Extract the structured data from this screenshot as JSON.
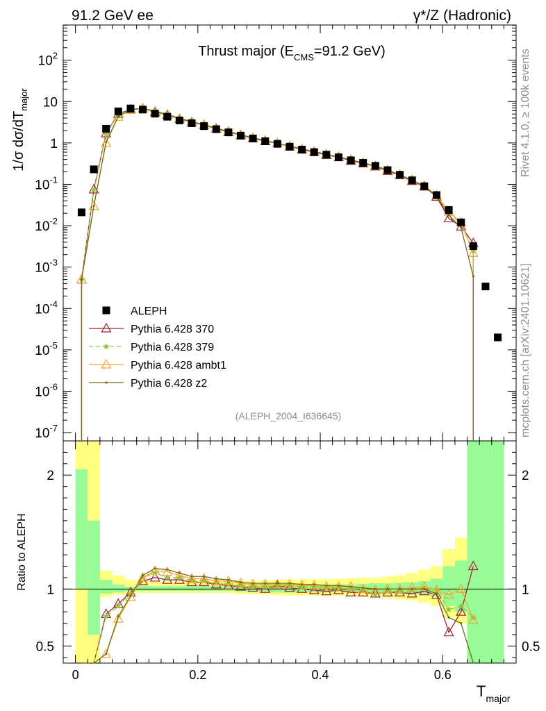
{
  "header": {
    "left": "91.2 GeV ee",
    "right": "γ*/Z (Hadronic)"
  },
  "side": {
    "rivet": "Rivet 4.1.0, ≥ 100k events",
    "site": "mcplots.cern.ch [arXiv:2401.10621]"
  },
  "watermark": "(ALEPH_2004_I636645)",
  "chart_data": {
    "type": "scatter",
    "title": "Thrust major (E_CMS=91.2 GeV)",
    "title_main": "Thrust major (E",
    "title_sub": "CMS",
    "title_tail": "=91.2 GeV)",
    "ylabel": "1/σ  dσ/dT",
    "ylabel_sub": "major",
    "xlabel": "T",
    "xlabel_sub": "major",
    "ratio_ylabel": "Ratio to ALEPH",
    "xlim": [
      -0.02,
      0.72
    ],
    "ylim_log10": [
      -7.2,
      2.85
    ],
    "ratio_ylim": [
      0.35,
      2.3
    ],
    "x_ticks": [
      "0",
      "0.2",
      "0.4",
      "0.6"
    ],
    "x_tick_values": [
      0,
      0.2,
      0.4,
      0.6
    ],
    "y_tick_labels": [
      "10^2",
      "10",
      "1",
      "10^-1",
      "10^-2",
      "10^-3",
      "10^-4",
      "10^-5",
      "10^-6",
      "10^-7"
    ],
    "y_tick_values": [
      100,
      10,
      1,
      0.1,
      0.01,
      0.001,
      0.0001,
      1e-05,
      1e-06,
      1e-07
    ],
    "ratio_ticks": [
      "0.5",
      "1",
      "2"
    ],
    "ratio_tick_values": [
      0.5,
      1,
      2
    ],
    "x": [
      0.01,
      0.03,
      0.05,
      0.07,
      0.09,
      0.11,
      0.13,
      0.15,
      0.17,
      0.19,
      0.21,
      0.23,
      0.25,
      0.27,
      0.29,
      0.31,
      0.33,
      0.35,
      0.37,
      0.39,
      0.41,
      0.43,
      0.45,
      0.47,
      0.49,
      0.51,
      0.53,
      0.55,
      0.57,
      0.59,
      0.61,
      0.63,
      0.65,
      0.67,
      0.69
    ],
    "band_inner": [
      [
        1.0,
        2.05
      ],
      [
        0.6,
        1.6
      ],
      [
        0.96,
        1.08
      ],
      [
        0.97,
        1.04
      ],
      [
        0.98,
        1.02
      ],
      [
        0.985,
        1.03
      ],
      [
        0.985,
        1.025
      ],
      [
        0.985,
        1.025
      ],
      [
        0.985,
        1.025
      ],
      [
        0.985,
        1.025
      ],
      [
        0.985,
        1.025
      ],
      [
        0.985,
        1.025
      ],
      [
        0.985,
        1.025
      ],
      [
        0.98,
        1.03
      ],
      [
        0.98,
        1.03
      ],
      [
        0.975,
        1.035
      ],
      [
        0.97,
        1.04
      ],
      [
        0.97,
        1.04
      ],
      [
        0.97,
        1.04
      ],
      [
        0.97,
        1.04
      ],
      [
        0.97,
        1.04
      ],
      [
        0.97,
        1.04
      ],
      [
        0.97,
        1.04
      ],
      [
        0.965,
        1.045
      ],
      [
        0.96,
        1.05
      ],
      [
        0.96,
        1.05
      ],
      [
        0.955,
        1.055
      ],
      [
        0.95,
        1.06
      ],
      [
        0.95,
        1.07
      ],
      [
        0.93,
        1.09
      ],
      [
        0.85,
        1.2
      ],
      [
        0.8,
        1.25
      ],
      [
        0.35,
        2.3
      ],
      [
        0.35,
        2.3
      ],
      [
        0.35,
        2.3
      ]
    ],
    "band_outer": [
      [
        0.35,
        2.3
      ],
      [
        0.35,
        2.3
      ],
      [
        0.93,
        1.16
      ],
      [
        0.95,
        1.12
      ],
      [
        0.96,
        1.08
      ],
      [
        0.965,
        1.07
      ],
      [
        0.965,
        1.065
      ],
      [
        0.965,
        1.065
      ],
      [
        0.965,
        1.065
      ],
      [
        0.965,
        1.065
      ],
      [
        0.965,
        1.065
      ],
      [
        0.965,
        1.065
      ],
      [
        0.965,
        1.065
      ],
      [
        0.955,
        1.07
      ],
      [
        0.955,
        1.07
      ],
      [
        0.95,
        1.075
      ],
      [
        0.945,
        1.08
      ],
      [
        0.94,
        1.085
      ],
      [
        0.94,
        1.085
      ],
      [
        0.94,
        1.085
      ],
      [
        0.94,
        1.085
      ],
      [
        0.94,
        1.09
      ],
      [
        0.935,
        1.095
      ],
      [
        0.93,
        1.1
      ],
      [
        0.93,
        1.1
      ],
      [
        0.92,
        1.11
      ],
      [
        0.91,
        1.12
      ],
      [
        0.9,
        1.14
      ],
      [
        0.88,
        1.17
      ],
      [
        0.85,
        1.2
      ],
      [
        0.75,
        1.35
      ],
      [
        0.7,
        1.45
      ],
      [
        0.35,
        2.3
      ],
      [
        0.35,
        2.3
      ],
      [
        0.35,
        2.3
      ]
    ],
    "series": [
      {
        "name": "ALEPH",
        "color": "#000000",
        "marker": "square",
        "values": [
          0.021,
          0.23,
          2.2,
          5.8,
          6.8,
          6.4,
          5.1,
          4.3,
          3.5,
          3.0,
          2.55,
          2.15,
          1.8,
          1.5,
          1.28,
          1.1,
          0.95,
          0.81,
          0.69,
          0.6,
          0.52,
          0.45,
          0.38,
          0.33,
          0.28,
          0.22,
          0.17,
          0.125,
          0.09,
          0.055,
          0.024,
          0.012,
          0.0032,
          0.00034,
          2e-05
        ]
      },
      {
        "name": "Pythia 6.428 370",
        "color": "#a0222e",
        "marker": "triangle-open",
        "dash": "",
        "values": [
          0.0005,
          0.075,
          1.7,
          5.0,
          6.5,
          6.8,
          5.5,
          4.7,
          3.8,
          3.15,
          2.7,
          2.2,
          1.83,
          1.52,
          1.29,
          1.1,
          0.98,
          0.82,
          0.69,
          0.6,
          0.51,
          0.45,
          0.37,
          0.32,
          0.27,
          0.21,
          0.165,
          0.12,
          0.088,
          0.05,
          0.015,
          0.0095,
          0.0038,
          null,
          null
        ],
        "ratio": [
          0.2,
          0.33,
          0.78,
          0.87,
          0.97,
          1.07,
          1.1,
          1.08,
          1.08,
          1.06,
          1.06,
          1.04,
          1.03,
          1.02,
          1.01,
          1.0,
          1.03,
          1.01,
          1.0,
          0.99,
          0.98,
          0.99,
          0.97,
          0.97,
          0.96,
          0.97,
          0.97,
          0.96,
          0.98,
          0.95,
          0.62,
          0.8,
          1.2,
          null,
          null
        ]
      },
      {
        "name": "Pythia 6.428 379",
        "color": "#8cc83c",
        "marker": "star",
        "dash": "6,4",
        "values": [
          0.0005,
          0.072,
          1.65,
          4.9,
          6.5,
          6.7,
          5.6,
          4.7,
          3.85,
          3.18,
          2.7,
          2.22,
          1.84,
          1.53,
          1.3,
          1.12,
          0.97,
          0.83,
          0.7,
          0.61,
          0.52,
          0.455,
          0.38,
          0.325,
          0.27,
          0.215,
          0.165,
          0.125,
          0.09,
          0.053,
          0.021,
          0.011,
          0.0025,
          null,
          null
        ],
        "ratio": [
          0.2,
          0.32,
          0.76,
          0.85,
          0.96,
          1.1,
          1.14,
          1.1,
          1.1,
          1.07,
          1.07,
          1.05,
          1.04,
          1.03,
          1.02,
          1.02,
          1.03,
          1.03,
          1.02,
          1.02,
          1.01,
          1.01,
          1.0,
          0.99,
          0.95,
          0.98,
          0.98,
          0.99,
          1.01,
          0.99,
          0.82,
          0.85,
          0.75,
          null,
          null
        ]
      },
      {
        "name": "Pythia 6.428 ambt1",
        "color": "#f0a830",
        "marker": "triangle-open",
        "dash": "",
        "values": [
          0.0005,
          0.03,
          1.0,
          4.3,
          6.3,
          6.8,
          5.8,
          4.9,
          3.9,
          3.25,
          2.75,
          2.27,
          1.9,
          1.57,
          1.32,
          1.14,
          0.98,
          0.84,
          0.71,
          0.62,
          0.53,
          0.46,
          0.39,
          0.33,
          0.28,
          0.22,
          0.17,
          0.127,
          0.092,
          0.054,
          0.022,
          0.012,
          0.0022,
          null,
          null
        ],
        "ratio": [
          0.02,
          0.13,
          0.43,
          0.74,
          0.93,
          1.1,
          1.16,
          1.15,
          1.12,
          1.09,
          1.09,
          1.07,
          1.07,
          1.05,
          1.04,
          1.04,
          1.04,
          1.04,
          1.03,
          1.03,
          1.02,
          1.02,
          1.02,
          1.0,
          0.99,
          1.0,
          1.0,
          1.01,
          1.02,
          0.99,
          0.95,
          1.0,
          0.73,
          null,
          null
        ]
      },
      {
        "name": "Pythia 6.428 z2",
        "color": "#6e6e1e",
        "marker": "dot",
        "dash": "",
        "values": [
          0.0005,
          0.03,
          1.05,
          4.4,
          6.3,
          6.9,
          5.9,
          4.9,
          3.95,
          3.28,
          2.77,
          2.28,
          1.9,
          1.58,
          1.33,
          1.15,
          0.98,
          0.84,
          0.72,
          0.62,
          0.53,
          0.46,
          0.39,
          0.33,
          0.28,
          0.22,
          0.17,
          0.125,
          0.09,
          0.052,
          0.018,
          0.009,
          0.0006,
          null,
          null
        ],
        "ratio": [
          0.02,
          0.13,
          0.43,
          0.76,
          0.94,
          1.12,
          1.18,
          1.17,
          1.14,
          1.11,
          1.11,
          1.09,
          1.08,
          1.06,
          1.05,
          1.05,
          1.05,
          1.05,
          1.04,
          1.04,
          1.03,
          1.03,
          1.02,
          1.01,
          1.0,
          1.0,
          1.0,
          1.0,
          1.0,
          0.96,
          0.75,
          0.7,
          0.2,
          null,
          null
        ]
      }
    ]
  }
}
